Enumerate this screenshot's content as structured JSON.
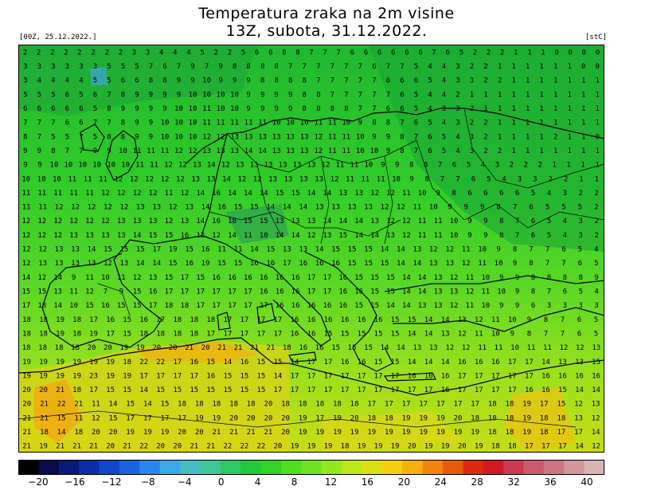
{
  "title": {
    "line1": "Temperatura zraka na 2m visine",
    "line2": "13Z, subota, 31.12.2022."
  },
  "run_info": "[00Z, 25.12.2022.]",
  "units": "[stC]",
  "colorbar": {
    "colors": [
      "#000000",
      "#0a0a4a",
      "#0a1a7a",
      "#0a2ea8",
      "#1046c8",
      "#1a64de",
      "#2a86ea",
      "#3ea6e8",
      "#46bcc4",
      "#3ec89a",
      "#2cc860",
      "#22c83a",
      "#30d228",
      "#4ede22",
      "#6ee420",
      "#94e81e",
      "#bce818",
      "#dcde14",
      "#f6d010",
      "#f8ae0e",
      "#f2840c",
      "#e85a0a",
      "#dc2a0c",
      "#d01a22",
      "#cc3a52",
      "#cc5a6a",
      "#cc7682",
      "#d0969a",
      "#d8b4b4"
    ],
    "tick_labels": [
      "−20",
      "−16",
      "−12",
      "−8",
      "−4",
      "0",
      "4",
      "8",
      "12",
      "16",
      "20",
      "24",
      "28",
      "32",
      "36",
      "40"
    ]
  },
  "grid_values": [
    "2 2 2 2 2 2 2 2 3 3 4 4 4 5 2 2 5 6 6 8 8 7 7 7 6 6 6 6 6 6 7 6 5 2 2 2 1 1 1 0 0 0 0",
    "3 3 3 3 3 3 5 5 5 7 6 7 9 7 9 8 8 8 8 7 7 7 7 7 7 6 7 7 5 4 4 3 2 2 1 1 1 1 1 1 0 0",
    "3 4 4 4 4 5 5 6 6 8 8 9 9 10 9 9 9 8 8 8 8 7 7 7 7 7 6 6 6 5 4 3 3 2 2 1 1 1 1 1 1 1",
    "5 5 5 6 5 6 7 8 9 9 9 9 10 10 10 10 9 9 9 9 8 8 7 7 7 7 7 6 5 4 4 2 1 1 1 1 1 1 1 1 1 1",
    "6 6 6 6 6 5 8 9 9 9 9 10 10 11 10 10 9 9 9 9 8 8 8 8 7 7 6 6 5 4 3 3 2 1 1 1 1 1 1 1 1 1",
    "7 7 7 6 6 7 7 8 9 9 10 10 10 11 11 11 11 11 10 10 10 11 11 10 9 8 8 7 6 5 4 3 2 2 1 1 1 1 1 1 1 1",
    "8 7 5 5 7 5 8 8 9 9 10 10 10 12 12 13 13 13 13 13 13 12 11 11 10 9 9 8 7 6 5 4 3 2 1 1 1 1 2 1 1 0",
    "9 9 8 7 7 9 9 10 11 11 11 12 12 13 13 13 14 14 13 13 13 12 11 11 10 10 9 8 7 6 5 4 3 2 2 1 1 1 1 1 1 1",
    "9 9 10 10 10 10 10 10 11 11 12 12 13 14 12 13 13 13 13 13 13 12 11 11 10 9 9 8 8 7 6 5 4 3 2 2 2 1 1 1 1",
    "10 10 10 11 11 11 12 12 12 12 12 13 13 14 12 12 13 13 13 13 12 11 11 11 10 9 8 7 7 6 5 4 3 3 2 2 1 1",
    "11 11 11 11 11 12 12 12 12 11 12 14 16 14 14 14 15 15 14 14 13 13 12 12 11 10 9 8 6 6 6 6 5 4 3 2 2",
    "11 11 12 12 12 12 12 13 13 12 13 14 16 15 15 14 14 14 13 13 13 13 12 12 11 10 9 9 9 8 7 6 5 5 5 2",
    "12 12 12 12 12 12 13 13 13 12 13 14 16 18 15 15 13 13 13 14 14 14 13 12 12 11 11 10 9 9 8 7 6 5 4 3 2",
    "12 12 12 13 13 13 13 14 15 15 16 12 12 14 11 10 14 14 12 13 15 14 14 13 12 11 11 10 9 9 8 7 6 5 4 3 2",
    "12 12 13 13 14 15 15 15 17 19 15 16 11 11 14 15 13 13 14 15 15 15 14 14 13 12 12 11 10 9 8 7 7 6 5 4",
    "12 13 13 13 13 12 13 14 14 15 16 19 15 15 16 16 17 16 16 16 15 15 15 14 14 13 13 12 11 10 9 8 7 7 6 5",
    "14 12 14 9 11 10 11 12 13 15 17 15 16 16 16 16 16 16 17 17 16 15 15 15 14 14 13 12 11 10 9 9 8 8 8 8 9",
    "15 15 13 11 12 7 9 15 16 17 17 17 17 17 17 16 16 16 17 17 16 16 15 15 14 14 13 13 12 11 10 9 8 7 6 5 4",
    "17 18 14 10 15 16 15 15 17 18 18 17 17 17 17 17 16 16 16 16 16 15 15 14 14 13 13 12 11 10 9 9 6 3 3 3 3",
    "18 18 19 18 17 16 15 16 17 18 18 18 17 17 17 17 16 16 16 16 16 16 15 15 14 14 13 12 11 10 9 8 7 6 5",
    "18 18 19 18 19 17 15 18 18 18 18 17 17 17 17 17 16 16 15 15 15 15 15 14 14 13 12 11 10 9 8 7 7 6 5",
    "18 18 18 18 20 20 19 19 20 20 21 20 21 21 21 21 18 16 16 15 15 15 14 14 13 13 12 12 11 11 10 11 11 12 12 13",
    "19 19 19 19 19 19 18 22 22 17 16 15 14 16 15 15 14 17 17 16 16 15 15 14 14 14 16 16 16 17 17 14 13 13 15",
    "19 19 19 19 23 19 19 17 17 17 17 16 15 15 15 14 17 17 17 17 17 17 17 16 16 16 17 17 17 17 17 16 16 16 16",
    "20 20 21 18 17 15 15 14 15 15 15 15 15 15 15 17 17 17 17 17 17 17 17 17 17 16 17 17 17 17 16 16 15 14 14",
    "20 21 22 21 11 14 15 14 15 18 18 18 18 18 20 18 18 18 18 18 17 17 17 17 17 17 17 18 18 19 17 15 12 13",
    "21 21 15 11 12 15 17 17 17 17 19 19 20 20 20 20 19 17 19 20 18 18 19 19 19 20 18 18 18 19 18 18 13 12",
    "21 18 14 18 20 20 19 19 19 20 20 21 21 21 21 20 19 19 19 19 19 19 19 19 19 19 19 18 18 19 18 17 17 14",
    "21 19 21 21 21 20 21 22 20 20 21 21 22 22 22 20 19 19 19 18 19 19 19 20 19 19 20 19 18 18 17 17 17 14 12"
  ]
}
